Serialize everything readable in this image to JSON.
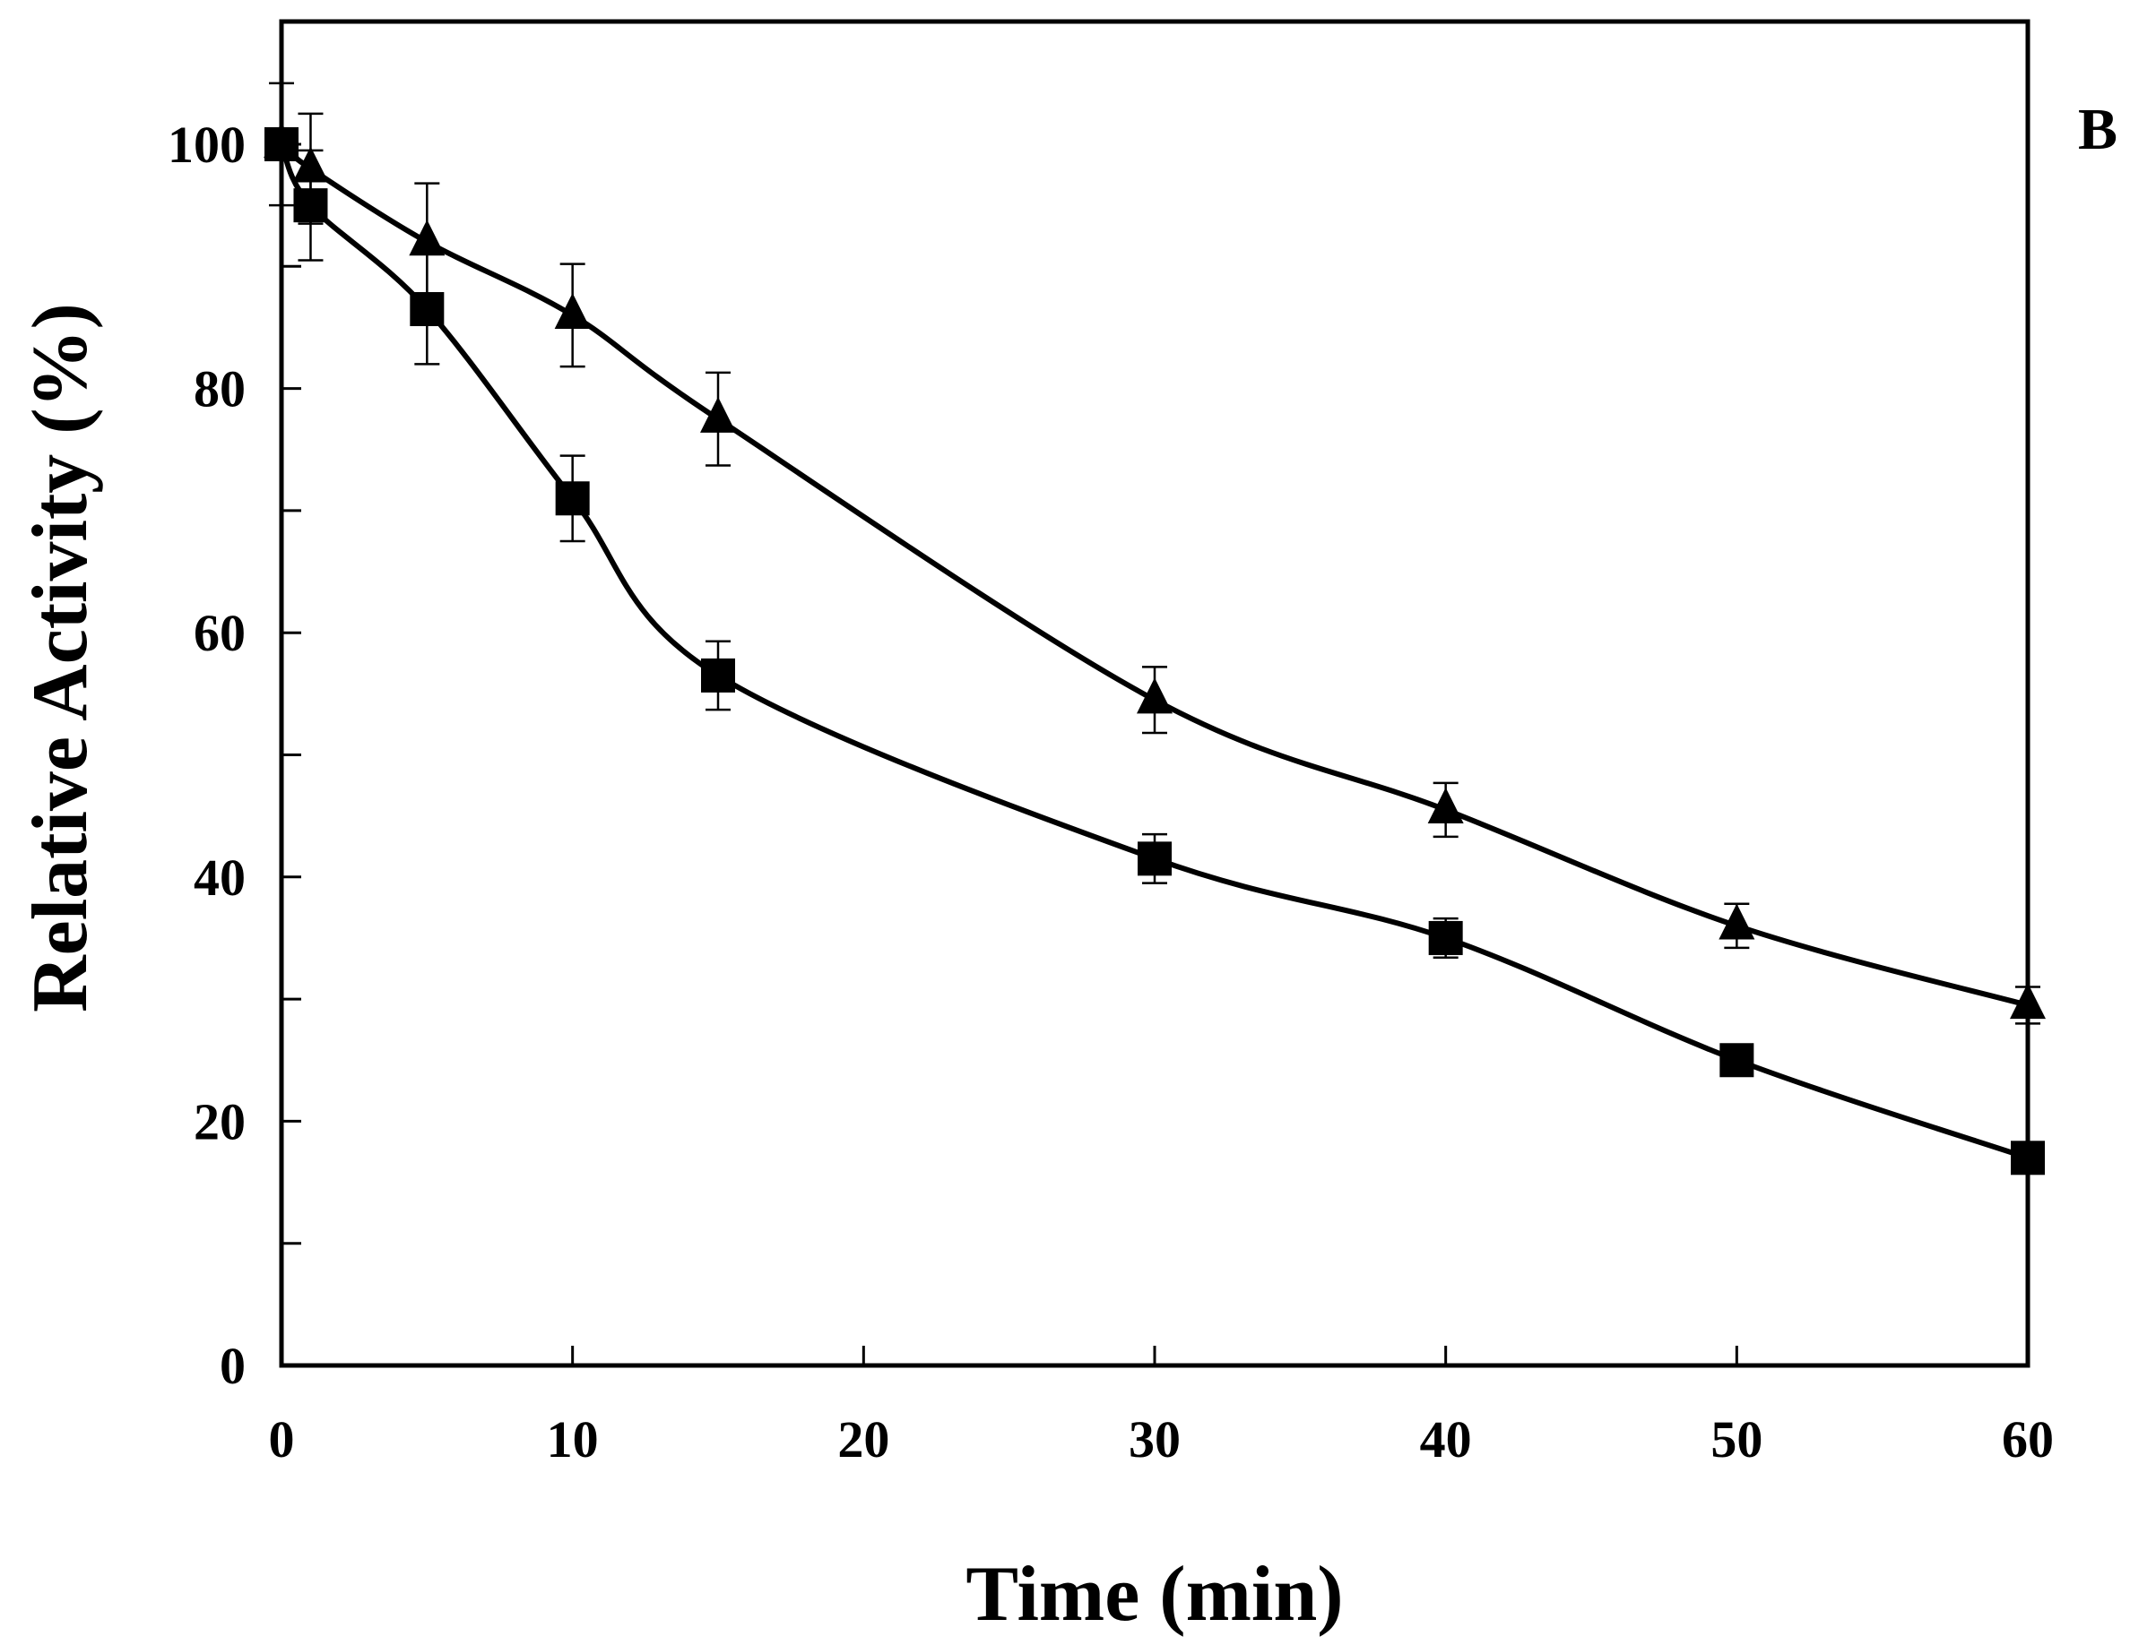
{
  "chart_data": {
    "type": "line",
    "title": "",
    "panel_label": "B",
    "xlabel": "Time (min)",
    "ylabel": "Relative Activity (%)",
    "xlim": [
      0,
      60
    ],
    "ylim": [
      0,
      110
    ],
    "x_ticks": [
      0,
      10,
      20,
      30,
      40,
      50,
      60
    ],
    "y_ticks": [
      0,
      20,
      40,
      60,
      80,
      100
    ],
    "grid": false,
    "series": [
      {
        "name": "triangle",
        "marker": "triangle",
        "x": [
          0,
          1,
          5,
          10,
          15,
          30,
          40,
          50,
          60
        ],
        "y": [
          100,
          98,
          92,
          86,
          77.5,
          54.5,
          45.5,
          36,
          29.5
        ],
        "err": [
          0,
          4.5,
          4.8,
          4.2,
          3.8,
          2.7,
          2.2,
          1.8,
          1.5
        ]
      },
      {
        "name": "square",
        "marker": "square",
        "x": [
          0,
          1,
          5,
          10,
          15,
          30,
          40,
          50,
          60
        ],
        "y": [
          100,
          95,
          86.5,
          71,
          56.5,
          41.5,
          35,
          25,
          17
        ],
        "err": [
          5,
          4.5,
          4.5,
          3.5,
          2.8,
          2,
          1.6,
          0,
          0
        ]
      }
    ]
  }
}
